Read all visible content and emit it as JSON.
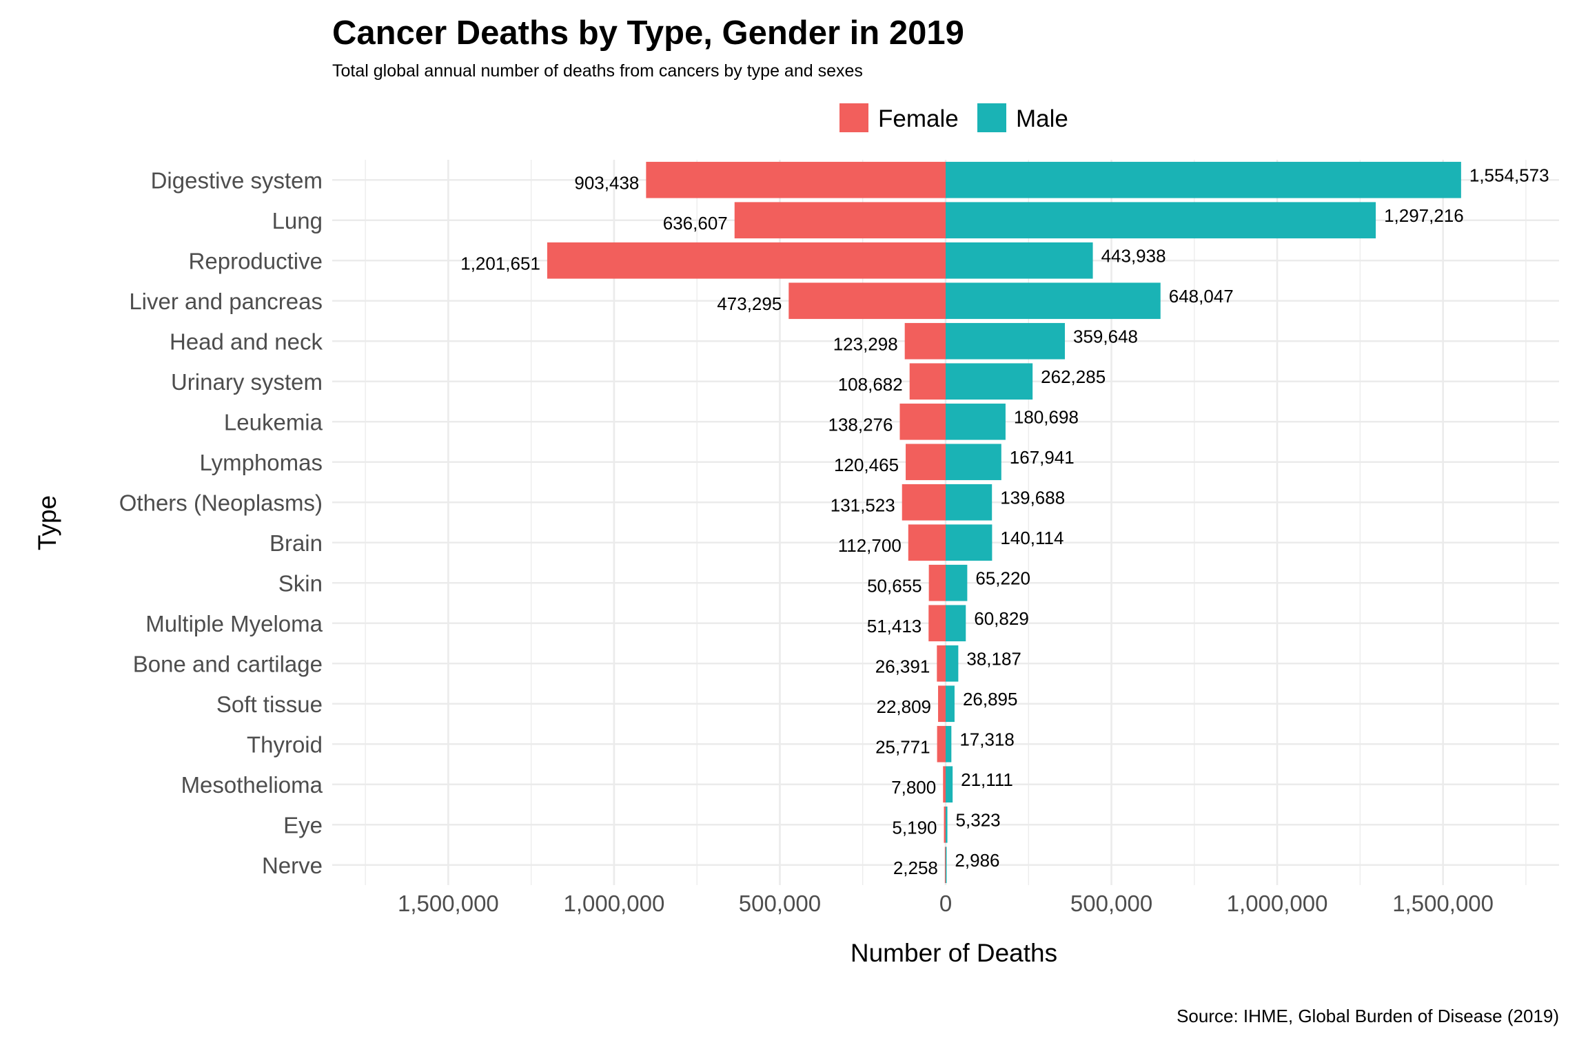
{
  "colors": {
    "female": "#F25F5C",
    "male": "#1AB3B5"
  },
  "chart_data": {
    "type": "bar",
    "orientation": "horizontal-diverging",
    "title": "Cancer Deaths by Type, Gender in 2019",
    "subtitle": "Total global annual number of deaths from cancers by type and sexes",
    "xlabel": "Number of Deaths",
    "ylabel": "Type",
    "caption": "Source: IHME, Global Burden of Disease (2019)",
    "legend_position": "top",
    "xlim": [
      -1850000,
      1850000
    ],
    "x_ticks": [
      -1500000,
      -1000000,
      -500000,
      0,
      500000,
      1000000,
      1500000
    ],
    "x_tick_labels": [
      "1,500,000",
      "1,000,000",
      "500,000",
      "0",
      "500,000",
      "1,000,000",
      "1,500,000"
    ],
    "categories": [
      "Digestive system",
      "Lung",
      "Reproductive",
      "Liver and pancreas",
      "Head and neck",
      "Urinary system",
      "Leukemia",
      "Lymphomas",
      "Others (Neoplasms)",
      "Brain",
      "Skin",
      "Multiple Myeloma",
      "Bone and cartilage",
      "Soft tissue",
      "Thyroid",
      "Mesothelioma",
      "Eye",
      "Nerve"
    ],
    "series": [
      {
        "name": "Female",
        "values": [
          903438,
          636607,
          1201651,
          473295,
          123298,
          108682,
          138276,
          120465,
          131523,
          112700,
          50655,
          51413,
          26391,
          22809,
          25771,
          7800,
          5190,
          2258
        ],
        "labels": [
          "903,438",
          "636,607",
          "1,201,651",
          "473,295",
          "123,298",
          "108,682",
          "138,276",
          "120,465",
          "131,523",
          "112,700",
          "50,655",
          "51,413",
          "26,391",
          "22,809",
          "25,771",
          "7,800",
          "5,190",
          "2,258"
        ]
      },
      {
        "name": "Male",
        "values": [
          1554573,
          1297216,
          443938,
          648047,
          359648,
          262285,
          180698,
          167941,
          139688,
          140114,
          65220,
          60829,
          38187,
          26895,
          17318,
          21111,
          5323,
          2986
        ],
        "labels": [
          "1,554,573",
          "1,297,216",
          "443,938",
          "648,047",
          "359,648",
          "262,285",
          "180,698",
          "167,941",
          "139,688",
          "140,114",
          "65,220",
          "60,829",
          "38,187",
          "26,895",
          "17,318",
          "21,111",
          "5,323",
          "2,986"
        ]
      }
    ]
  }
}
